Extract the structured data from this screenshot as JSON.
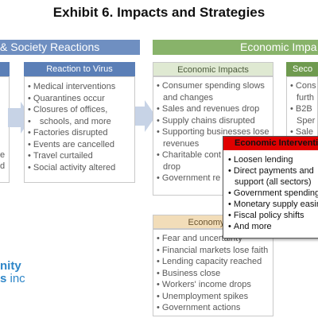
{
  "title": "Exhibit 6. Impacts and Strategies",
  "bands": {
    "left": "& Society Reactions",
    "right": "Economic Impa"
  },
  "left_stub": {
    "lines": [
      "e",
      "d"
    ]
  },
  "reaction_to_virus": {
    "heading": "Reaction to Virus",
    "items": [
      "Medical interventions",
      "Quarantines occur",
      "Closures of offices,",
      "schools, and more",
      "Factories disrupted",
      "Events are cancelled",
      "Travel curtailed",
      "Social activity altered"
    ]
  },
  "economic_impacts": {
    "heading": "Economic Impacts",
    "items": [
      "Consumer spending slows",
      "and changes",
      "Sales and revenues drop",
      "Supply chains disrupted",
      "Supporting businesses lose",
      "revenues",
      "Charitable cont",
      "drop",
      "Government re"
    ]
  },
  "secondary": {
    "heading": "Seco",
    "items": [
      "Cons",
      "furth",
      "B2B",
      "Sper",
      "Sale"
    ]
  },
  "economy_reactions": {
    "heading": "Economy Re",
    "items": [
      "Fear and uncertainty",
      "Financial markets lose faith",
      "Lending capacity reached",
      "Business close",
      "Workers' income drops",
      "Unemployment spikes",
      "Government actions"
    ]
  },
  "economic_interventions": {
    "heading": "Economic Interventi",
    "items": [
      "Loosen lending",
      "Direct payments and",
      "support (all sectors)",
      "Government spending",
      "Monetary supply easin",
      "Fiscal policy shifts",
      "And more"
    ]
  },
  "logo": {
    "line1": "nity",
    "line2_bold": "s",
    "line2_rest": " inc"
  },
  "colors": {
    "blue_band": "#6f8fc1",
    "blue_head": "#5b7fb7",
    "green_band": "#88b36a",
    "green_head_light": "#dfe9d2",
    "tan_head": "#f2ddb9",
    "red_head": "#e00000",
    "logo_blue": "#2e86c8"
  },
  "icons": [
    "chevron-arrow-icon",
    "chevron-arrow-icon"
  ]
}
